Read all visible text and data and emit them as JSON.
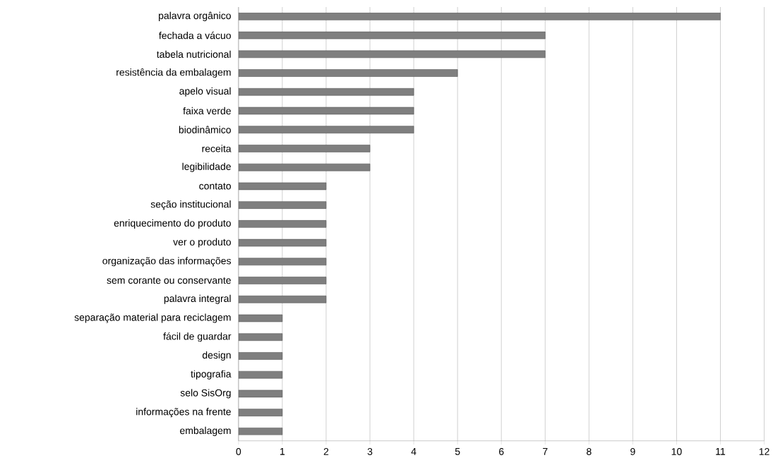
{
  "chart_data": {
    "type": "bar",
    "orientation": "horizontal",
    "color": "#7f7f7f",
    "categories": [
      "palavra orgânico",
      "fechada a vácuo",
      "tabela nutricional",
      "resistência da embalagem",
      "apelo visual",
      "faixa verde",
      "biodinâmico",
      "receita",
      "legibilidade",
      "contato",
      "seção institucional",
      "enriquecimento do produto",
      "ver o produto",
      "organização das informações",
      "sem corante ou conservante",
      "palavra integral",
      "separação material para reciclagem",
      "fácil de guardar",
      "design",
      "tipografia",
      "selo SisOrg",
      "informações na frente",
      "embalagem"
    ],
    "values": [
      11,
      7,
      7,
      5,
      4,
      4,
      4,
      3,
      3,
      2,
      2,
      2,
      2,
      2,
      2,
      2,
      1,
      1,
      1,
      1,
      1,
      1,
      1
    ],
    "xlim": [
      0,
      12
    ],
    "xticks": [
      0,
      1,
      2,
      3,
      4,
      5,
      6,
      7,
      8,
      9,
      10,
      11,
      12
    ],
    "grid": "x"
  }
}
